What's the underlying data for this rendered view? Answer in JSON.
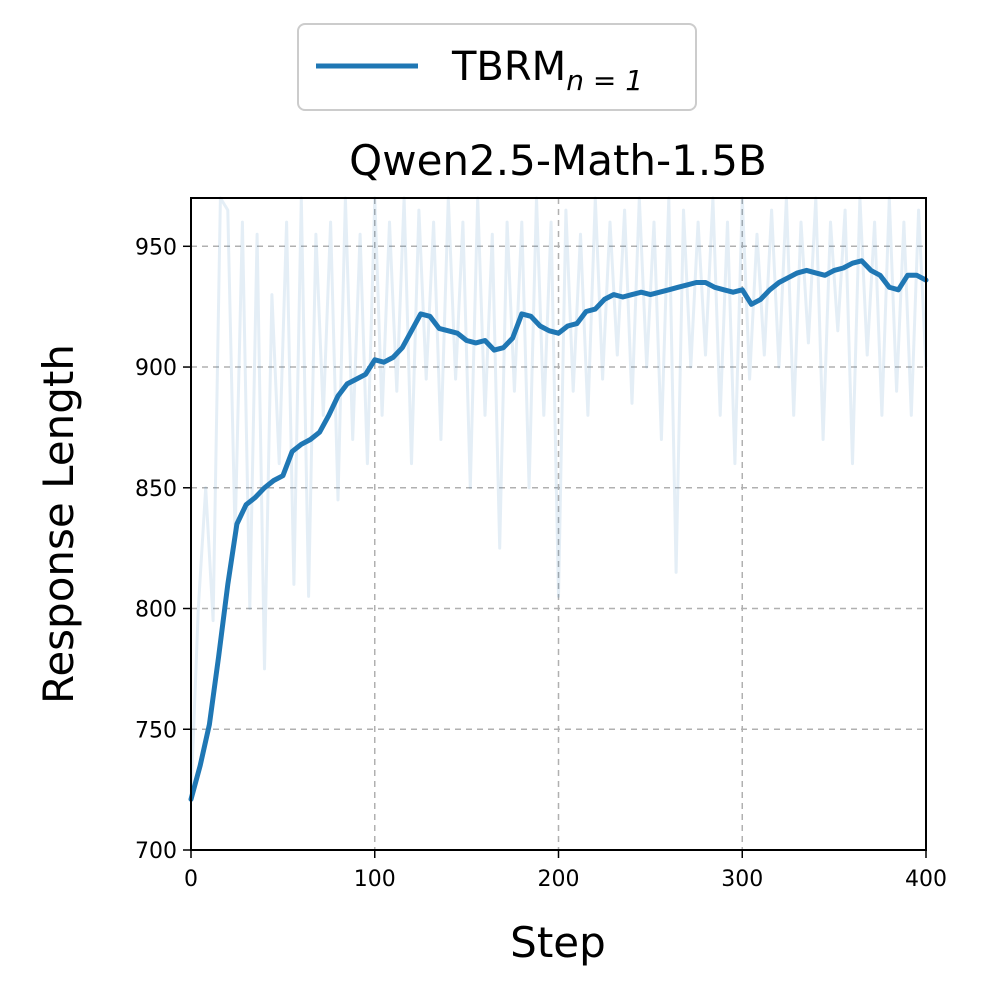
{
  "chart_data": {
    "type": "line",
    "title": "Qwen2.5-Math-1.5B",
    "xlabel": "Step",
    "ylabel": "Response Length",
    "xlim": [
      0,
      400
    ],
    "ylim": [
      700,
      970
    ],
    "x_ticks": [
      0,
      100,
      200,
      300,
      400
    ],
    "y_ticks": [
      700,
      750,
      800,
      850,
      900,
      950
    ],
    "grid": true,
    "legend_position": "top-center",
    "legend": [
      {
        "name": "TBRM",
        "subscript": "n = 1",
        "color": "#1f77b4"
      }
    ],
    "series": [
      {
        "name": "TBRM n=1 (smoothed)",
        "color": "#1f77b4",
        "x": [
          0,
          5,
          10,
          15,
          20,
          25,
          30,
          35,
          40,
          45,
          50,
          55,
          60,
          65,
          70,
          75,
          80,
          85,
          90,
          95,
          100,
          105,
          110,
          115,
          120,
          125,
          130,
          135,
          140,
          145,
          150,
          155,
          160,
          165,
          170,
          175,
          180,
          185,
          190,
          195,
          200,
          205,
          210,
          215,
          220,
          225,
          230,
          235,
          240,
          245,
          250,
          255,
          260,
          265,
          270,
          275,
          280,
          285,
          290,
          295,
          300,
          305,
          310,
          315,
          320,
          325,
          330,
          335,
          340,
          345,
          350,
          355,
          360,
          365,
          370,
          375,
          380,
          385,
          390,
          395,
          400
        ],
        "y": [
          721,
          735,
          752,
          780,
          810,
          835,
          843,
          846,
          850,
          853,
          855,
          865,
          868,
          870,
          873,
          880,
          888,
          893,
          895,
          897,
          903,
          902,
          904,
          908,
          915,
          922,
          921,
          916,
          915,
          914,
          911,
          910,
          911,
          907,
          908,
          912,
          922,
          921,
          917,
          915,
          914,
          917,
          918,
          923,
          924,
          928,
          930,
          929,
          930,
          931,
          930,
          931,
          932,
          933,
          934,
          935,
          935,
          933,
          932,
          931,
          932,
          926,
          928,
          932,
          935,
          937,
          939,
          940,
          939,
          938,
          940,
          941,
          943,
          944,
          940,
          938,
          933,
          932,
          938,
          938,
          936
        ]
      },
      {
        "name": "TBRM n=1 (raw)",
        "color": "#1f77b4",
        "x": [
          0,
          4,
          8,
          12,
          16,
          20,
          24,
          28,
          32,
          36,
          40,
          44,
          48,
          52,
          56,
          60,
          64,
          68,
          72,
          76,
          80,
          84,
          88,
          92,
          96,
          100,
          104,
          108,
          112,
          116,
          120,
          124,
          128,
          132,
          136,
          140,
          144,
          148,
          152,
          156,
          160,
          164,
          168,
          172,
          176,
          180,
          184,
          188,
          192,
          196,
          200,
          204,
          208,
          212,
          216,
          220,
          224,
          228,
          232,
          236,
          240,
          244,
          248,
          252,
          256,
          260,
          264,
          268,
          272,
          276,
          280,
          284,
          288,
          292,
          296,
          300,
          304,
          308,
          312,
          316,
          320,
          324,
          328,
          332,
          336,
          340,
          344,
          348,
          352,
          356,
          360,
          364,
          368,
          372,
          376,
          380,
          384,
          388,
          392,
          396,
          400
        ],
        "y": [
          722,
          800,
          850,
          795,
          970,
          965,
          830,
          960,
          800,
          955,
          775,
          930,
          860,
          960,
          810,
          970,
          805,
          955,
          880,
          960,
          845,
          970,
          870,
          955,
          860,
          970,
          880,
          960,
          890,
          970,
          860,
          965,
          895,
          960,
          870,
          970,
          895,
          960,
          850,
          970,
          880,
          955,
          825,
          960,
          890,
          960,
          850,
          970,
          880,
          960,
          805,
          965,
          890,
          955,
          880,
          970,
          895,
          960,
          905,
          965,
          885,
          970,
          900,
          960,
          870,
          970,
          815,
          965,
          900,
          960,
          905,
          970,
          880,
          960,
          860,
          970,
          895,
          955,
          905,
          965,
          900,
          970,
          880,
          960,
          910,
          970,
          870,
          960,
          915,
          965,
          860,
          970,
          905,
          960,
          880,
          970,
          890,
          960,
          880,
          965,
          900
        ]
      }
    ]
  }
}
